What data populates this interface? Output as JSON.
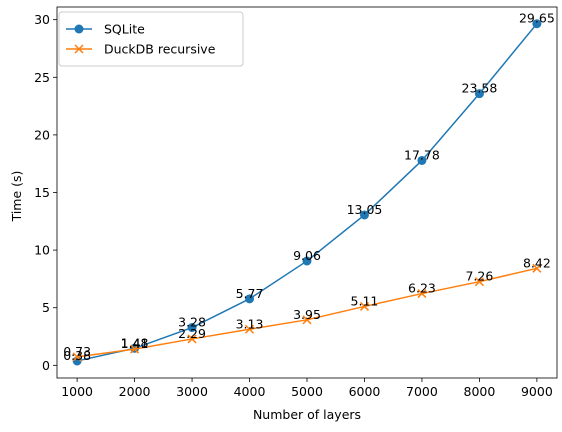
{
  "chart_data": {
    "type": "line",
    "title": "",
    "xlabel": "Number of layers",
    "ylabel": "Time (s)",
    "x": [
      1000,
      2000,
      3000,
      4000,
      5000,
      6000,
      7000,
      8000,
      9000
    ],
    "xlim": [
      650,
      9350
    ],
    "ylim": [
      -1.1,
      31.1
    ],
    "xticks": [
      1000,
      2000,
      3000,
      4000,
      5000,
      6000,
      7000,
      8000,
      9000
    ],
    "yticks": [
      0,
      5,
      10,
      15,
      20,
      25,
      30
    ],
    "grid": false,
    "legend_position": "top-left",
    "series": [
      {
        "name": "SQLite",
        "color": "#1f77b4",
        "marker": "circle",
        "values": [
          0.38,
          1.48,
          3.28,
          5.77,
          9.06,
          13.05,
          17.78,
          23.58,
          29.65
        ],
        "labels": [
          "0.38",
          "1.48",
          "3.28",
          "5.77",
          "9.06",
          "13.05",
          "17.78",
          "23.58",
          "29.65"
        ]
      },
      {
        "name": "DuckDB recursive",
        "color": "#ff7f0e",
        "marker": "x",
        "values": [
          0.73,
          1.41,
          2.29,
          3.13,
          3.95,
          5.11,
          6.23,
          7.26,
          8.42
        ],
        "labels": [
          "0.73",
          "1.41",
          "2.29",
          "3.13",
          "3.95",
          "5.11",
          "6.23",
          "7.26",
          "8.42"
        ]
      }
    ]
  }
}
